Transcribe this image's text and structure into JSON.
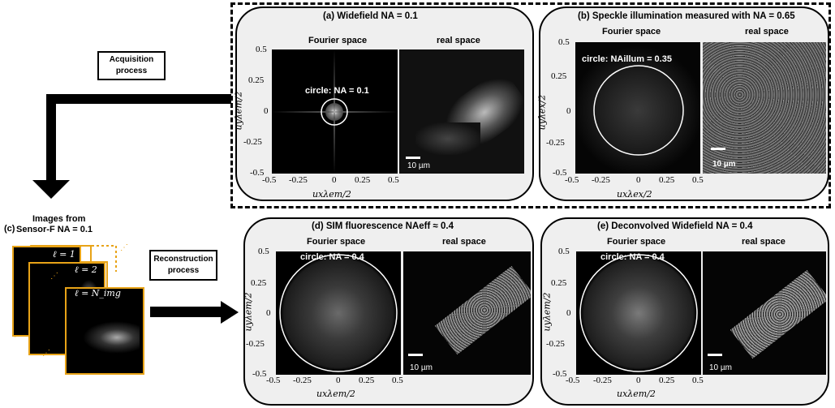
{
  "acquisition_box": "Acquisition process",
  "reconstruction_box": "Reconstruction process",
  "stack": {
    "panel_label": "(c)",
    "title_line1": "Images from",
    "title_line2": "Sensor-F NA = 0.1",
    "frame_labels": [
      "ℓ = 1",
      "ℓ = 2",
      "ℓ = N_img"
    ]
  },
  "panels": {
    "a": {
      "title": "(a) Widefield NA = 0.1",
      "fourier_label": "Fourier space",
      "real_label": "real space",
      "circle_label": "circle: NA = 0.1",
      "ylabel": "uyλem/2",
      "xlabel": "uxλem/2",
      "scale": "10 µm"
    },
    "b": {
      "title": "(b) Speckle illumination measured with NA = 0.65",
      "fourier_label": "Fourier space",
      "real_label": "real space",
      "circle_label": "circle: NAillum = 0.35",
      "ylabel": "uyλex/2",
      "xlabel": "uxλex/2",
      "scale": "10 µm"
    },
    "d": {
      "title": "(d) SIM fluorescence NAeff ≈ 0.4",
      "fourier_label": "Fourier space",
      "real_label": "real space",
      "circle_label": "circle: NA = 0.4",
      "ylabel": "uyλem/2",
      "xlabel": "uxλem/2",
      "scale": "10 µm"
    },
    "e": {
      "title": "(e) Deconvolved Widefield NA = 0.4",
      "fourier_label": "Fourier space",
      "real_label": "real space",
      "circle_label": "circle: NA = 0.4",
      "ylabel": "uyλem/2",
      "xlabel": "uxλem/2",
      "scale": "10 µm"
    }
  },
  "yticks": [
    "0.5",
    "0.25",
    "0",
    "-0.25",
    "-0.5"
  ],
  "xticks": [
    "-0.5",
    "-0.25",
    "0",
    "0.25",
    "0.5"
  ],
  "colors": {
    "frame": "#e8a317",
    "panel_bg": "#efefef"
  }
}
